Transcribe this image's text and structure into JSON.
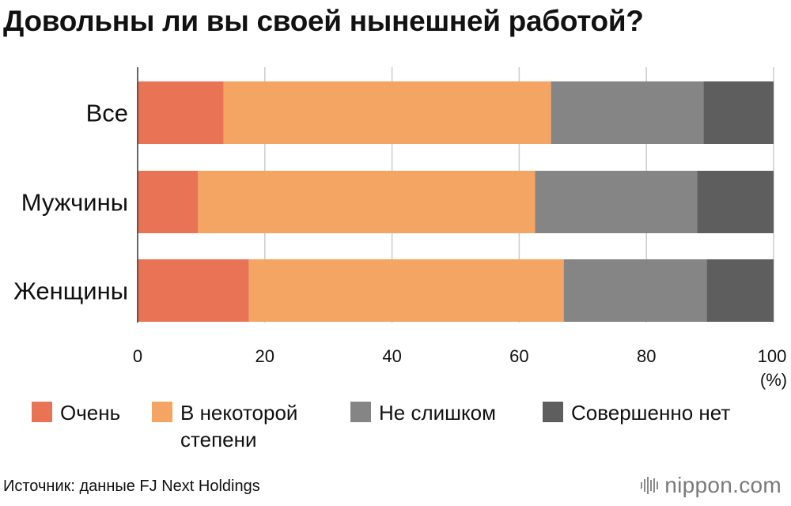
{
  "title": "Довольны ли вы своей нынешней работой?",
  "chart_data": {
    "type": "bar",
    "orientation": "horizontal",
    "stacked": true,
    "categories": [
      "Все",
      "Мужчины",
      "Женщины"
    ],
    "series": [
      {
        "name": "Очень",
        "color": "#E87455",
        "values": [
          13.5,
          9.5,
          17.5
        ]
      },
      {
        "name": "В некоторой степени",
        "color": "#F4A463",
        "values": [
          51.5,
          53.0,
          49.5
        ]
      },
      {
        "name": "Не слишком",
        "color": "#858585",
        "values": [
          24.0,
          25.5,
          22.5
        ]
      },
      {
        "name": "Совершенно нет",
        "color": "#5E5E5E",
        "values": [
          11.0,
          12.0,
          10.5
        ]
      }
    ],
    "xlim": [
      0,
      100
    ],
    "xticks": [
      "0",
      "20",
      "40",
      "60",
      "80",
      "100"
    ],
    "xunit": "(%)",
    "grid": true,
    "legend_position": "bottom"
  },
  "legend": [
    {
      "line1": "Очень",
      "line2": ""
    },
    {
      "line1": "В некоторой",
      "line2": "степени"
    },
    {
      "line1": "Не слишком",
      "line2": ""
    },
    {
      "line1": "Совершенно нет",
      "line2": ""
    }
  ],
  "source": "Источник: данные FJ Next Holdings",
  "brand": "nippon.com"
}
